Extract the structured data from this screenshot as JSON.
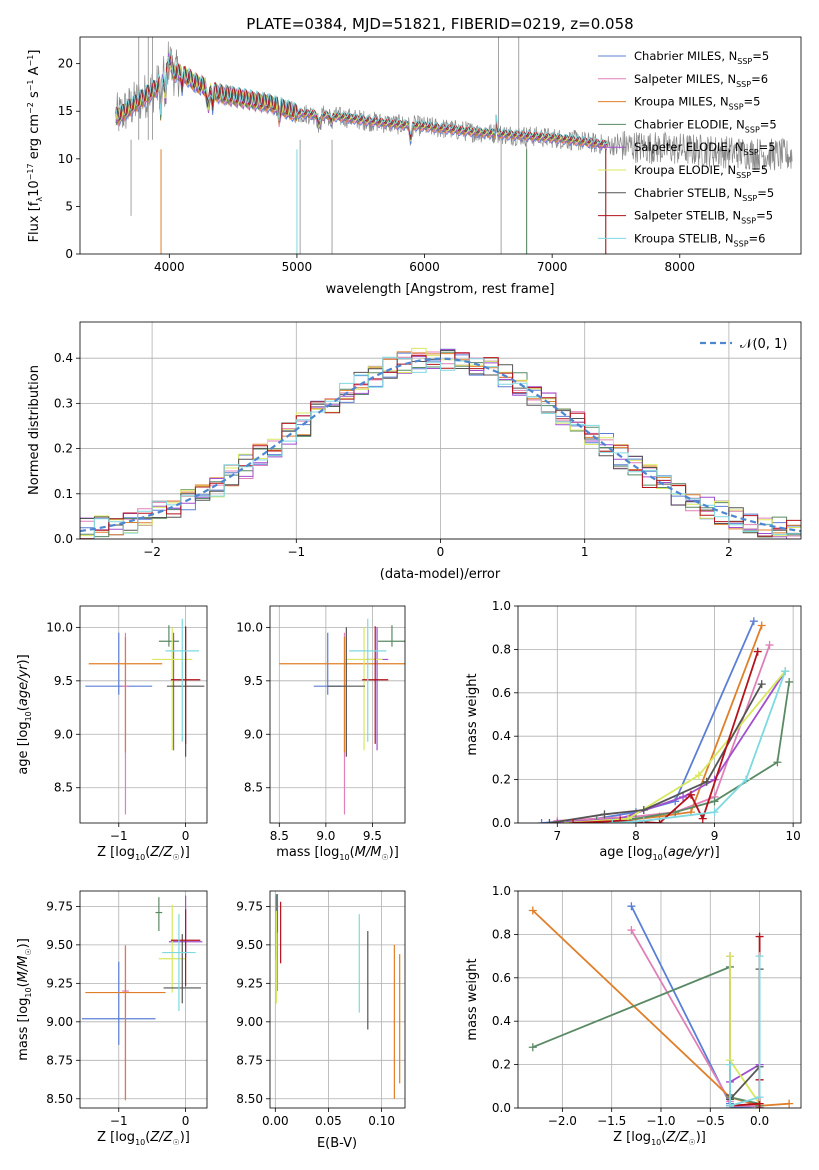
{
  "figure": {
    "title": "PLATE=0384, MJD=51821, FIBERID=0219, z=0.058"
  },
  "models": [
    {
      "name": "Chabrier MILES, N$_{SSP}$=5",
      "label_main": "Chabrier MILES, N",
      "label_sub": "SSP",
      "label_tail": "=5",
      "color": "#5b7fd6"
    },
    {
      "name": "Salpeter MILES, N$_{SSP}$=6",
      "label_main": "Salpeter MILES, N",
      "label_sub": "SSP",
      "label_tail": "=6",
      "color": "#e080b8"
    },
    {
      "name": "Kroupa MILES, N$_{SSP}$=5",
      "label_main": "Kroupa MILES, N",
      "label_sub": "SSP",
      "label_tail": "=5",
      "color": "#e07f2a"
    },
    {
      "name": "Chabrier ELODIE, N$_{SSP}$=5",
      "label_main": "Chabrier ELODIE, N",
      "label_sub": "SSP",
      "label_tail": "=5",
      "color": "#5a8a65"
    },
    {
      "name": "Salpeter ELODIE, N$_{SSP}$=5",
      "label_main": "Salpeter ELODIE, N",
      "label_sub": "SSP",
      "label_tail": "=5",
      "color": "#a14fcf"
    },
    {
      "name": "Kroupa ELODIE, N$_{SSP}$=5",
      "label_main": "Kroupa ELODIE, N",
      "label_sub": "SSP",
      "label_tail": "=5",
      "color": "#d8e860"
    },
    {
      "name": "Chabrier STELIB, N$_{SSP}$=5",
      "label_main": "Chabrier STELIB, N",
      "label_sub": "SSP",
      "label_tail": "=5",
      "color": "#555555"
    },
    {
      "name": "Salpeter STELIB, N$_{SSP}$=5",
      "label_main": "Salpeter STELIB, N",
      "label_sub": "SSP",
      "label_tail": "=5",
      "color": "#b5121b"
    },
    {
      "name": "Kroupa STELIB, N$_{SSP}$=6",
      "label_main": "Kroupa STELIB, N",
      "label_sub": "SSP",
      "label_tail": "=6",
      "color": "#7ed9e0"
    }
  ],
  "chart_data": [
    {
      "id": "spectrum",
      "type": "line",
      "xlabel": "wavelength [Angstrom, rest frame]",
      "ylabel": "Flux [f",
      "ylabel_parts": [
        "Flux [f",
        "λ",
        "10",
        "−17",
        " erg cm",
        "−2",
        " s",
        "−1",
        " A",
        "−1",
        "]"
      ],
      "xlim": [
        3300,
        8950
      ],
      "ylim": [
        0,
        22.8
      ],
      "xticks": [
        4000,
        5000,
        6000,
        7000,
        8000
      ],
      "yticks": [
        0,
        5,
        10,
        15,
        20
      ],
      "legend": "top-right",
      "continuum": {
        "x": [
          3600,
          3700,
          3800,
          3900,
          4000,
          4100,
          4200,
          4400,
          4600,
          4800,
          4900,
          5000,
          5200,
          5400,
          5600,
          5800,
          6000,
          6200,
          6400,
          6600,
          6800,
          7000,
          7200,
          7400
        ],
        "y": [
          14.5,
          15.5,
          16.5,
          17.5,
          19.0,
          19.0,
          18.0,
          16.8,
          16.3,
          15.8,
          15.3,
          14.8,
          14.6,
          14.3,
          13.9,
          13.6,
          13.4,
          13.1,
          12.8,
          12.6,
          12.4,
          12.2,
          11.9,
          11.5
        ]
      },
      "data_x_range": [
        3580,
        8880
      ]
    },
    {
      "id": "residuals",
      "type": "bar",
      "xlabel": "(data-model)/error",
      "ylabel": "Normed distribution",
      "xlim": [
        -2.5,
        2.5
      ],
      "ylim": [
        0,
        0.48
      ],
      "xticks": [
        -2,
        -1,
        0,
        1,
        2
      ],
      "yticks": [
        0.0,
        0.1,
        0.2,
        0.3,
        0.4
      ],
      "legend": "top-right",
      "legend_label": "𝒩(0, 1)",
      "gaussian": {
        "mu": 0,
        "sigma": 1
      },
      "bin_width": 0.1,
      "bin_start": -2.5,
      "bins": 50
    },
    {
      "id": "age_vs_Z",
      "type": "scatter",
      "xlabel": "Z [log",
      "xlabel_full": "Z [log10(Z/Z☉)]",
      "ylabel_full": "age  [log10(age/yr)]",
      "xlim": [
        -1.58,
        0.32
      ],
      "ylim": [
        8.17,
        10.2
      ],
      "xticks": [
        -1,
        0
      ],
      "yticks": [
        8.5,
        9.0,
        9.5,
        10.0
      ],
      "points": [
        {
          "x": -1.0,
          "xerr": 0.5,
          "y": 9.45,
          "yerr_lo": 0.08,
          "yerr_hi": 0.5
        },
        {
          "x": -0.9,
          "xerr": 0.05,
          "y": 9.45,
          "yerr_lo": 1.2,
          "yerr_hi": 0.5
        },
        {
          "x": -0.9,
          "xerr": 0.55,
          "y": 9.66,
          "yerr_lo": 0.83,
          "yerr_hi": 0.25
        },
        {
          "x": -0.25,
          "xerr": 0.15,
          "y": 9.87,
          "yerr_lo": 0.05,
          "yerr_hi": 0.15
        },
        {
          "x": -0.18,
          "xerr": 0.02,
          "y": 9.45,
          "yerr_lo": 0.6,
          "yerr_hi": 0.5
        },
        {
          "x": -0.2,
          "xerr": 0.3,
          "y": 9.7,
          "yerr_lo": 0.85,
          "yerr_hi": 0.3
        },
        {
          "x": 0.0,
          "xerr": 0.28,
          "y": 9.45,
          "yerr_lo": 0.66,
          "yerr_hi": 0.55
        },
        {
          "x": 0.0,
          "xerr": 0.22,
          "y": 9.51,
          "yerr_lo": 0.6,
          "yerr_hi": 0.5
        },
        {
          "x": -0.05,
          "xerr": 0.25,
          "y": 9.78,
          "yerr_lo": 0.85,
          "yerr_hi": 0.3
        }
      ]
    },
    {
      "id": "age_vs_mass",
      "type": "scatter",
      "xlabel_full": "mass [log10(M/M☉)]",
      "xlim": [
        8.4,
        9.85
      ],
      "ylim": [
        8.17,
        10.2
      ],
      "xticks": [
        8.5,
        9.0,
        9.5
      ],
      "yticks": [
        8.5,
        9.0,
        9.5,
        10.0
      ],
      "points": [
        {
          "x": 9.02,
          "xerr": 0.15,
          "y": 9.45,
          "yerr_lo": 0.08,
          "yerr_hi": 0.5
        },
        {
          "x": 9.2,
          "xerr": 0.02,
          "y": 9.45,
          "yerr_lo": 1.2,
          "yerr_hi": 0.5
        },
        {
          "x": 9.2,
          "xerr": 0.7,
          "y": 9.66,
          "yerr_lo": 0.83,
          "yerr_hi": 0.25
        },
        {
          "x": 9.71,
          "xerr": 0.15,
          "y": 9.87,
          "yerr_lo": 0.05,
          "yerr_hi": 0.15
        },
        {
          "x": 9.55,
          "xerr": 0.12,
          "y": 9.7,
          "yerr_lo": 0.85,
          "yerr_hi": 0.3
        },
        {
          "x": 9.41,
          "xerr": 0.2,
          "y": 9.7,
          "yerr_lo": 0.85,
          "yerr_hi": 0.3
        },
        {
          "x": 9.22,
          "xerr": 0.2,
          "y": 9.45,
          "yerr_lo": 0.66,
          "yerr_hi": 0.55
        },
        {
          "x": 9.53,
          "xerr": 0.14,
          "y": 9.51,
          "yerr_lo": 0.6,
          "yerr_hi": 0.5
        },
        {
          "x": 9.45,
          "xerr": 0.2,
          "y": 9.78,
          "yerr_lo": 0.85,
          "yerr_hi": 0.3
        }
      ]
    },
    {
      "id": "weight_vs_age",
      "type": "line",
      "xlabel_full": "age  [log10(age/yr)]",
      "ylabel": "mass weight",
      "xlim": [
        6.5,
        10.1
      ],
      "ylim": [
        0,
        1.0
      ],
      "xticks": [
        7,
        8,
        9,
        10
      ],
      "yticks": [
        0.0,
        0.2,
        0.4,
        0.6,
        0.8,
        1.0
      ],
      "series": [
        {
          "x": [
            6.8,
            7.5,
            8.0,
            8.5,
            9.5
          ],
          "y": [
            0.0,
            0.02,
            0.05,
            0.1,
            0.93
          ]
        },
        {
          "x": [
            7.0,
            7.5,
            8.0,
            8.5,
            9.0,
            9.7
          ],
          "y": [
            0.01,
            0.02,
            0.03,
            0.05,
            0.12,
            0.82
          ]
        },
        {
          "x": [
            7.2,
            7.8,
            8.3,
            8.7,
            9.6
          ],
          "y": [
            0.0,
            0.01,
            0.03,
            0.05,
            0.91
          ]
        },
        {
          "x": [
            7.5,
            8.0,
            8.5,
            9.0,
            9.8,
            9.95
          ],
          "y": [
            0.01,
            0.02,
            0.05,
            0.1,
            0.28,
            0.65
          ]
        },
        {
          "x": [
            7.0,
            7.8,
            8.6,
            9.0,
            9.9
          ],
          "y": [
            0.0,
            0.02,
            0.12,
            0.2,
            0.7
          ]
        },
        {
          "x": [
            7.1,
            7.9,
            8.8,
            9.9
          ],
          "y": [
            0.0,
            0.02,
            0.22,
            0.7
          ]
        },
        {
          "x": [
            6.9,
            7.6,
            8.1,
            8.9,
            9.6
          ],
          "y": [
            0.0,
            0.04,
            0.06,
            0.19,
            0.64
          ]
        },
        {
          "x": [
            7.2,
            7.8,
            8.3,
            8.7,
            8.85,
            9.55
          ],
          "y": [
            0.0,
            0.01,
            0.0,
            0.13,
            0.02,
            0.79
          ]
        },
        {
          "x": [
            7.7,
            8.1,
            9.0,
            9.4,
            9.9
          ],
          "y": [
            0.0,
            0.01,
            0.05,
            0.2,
            0.7
          ]
        }
      ]
    },
    {
      "id": "mass_vs_Z",
      "type": "scatter",
      "xlabel_full": "Z [log10(Z/Z☉)]",
      "ylabel_full": "mass [log10(M/M☉)]",
      "xlim": [
        -1.58,
        0.32
      ],
      "ylim": [
        8.44,
        9.85
      ],
      "xticks": [
        -1,
        0
      ],
      "yticks": [
        8.5,
        8.75,
        9.0,
        9.25,
        9.5,
        9.75
      ],
      "points": [
        {
          "x": -1.0,
          "xerr": 0.55,
          "y": 9.02,
          "yerr_lo": 0.17,
          "yerr_hi": 0.37
        },
        {
          "x": -0.9,
          "xerr": 0.05,
          "y": 9.2,
          "yerr_lo": 0.7,
          "yerr_hi": 0.3
        },
        {
          "x": -0.9,
          "xerr": 0.6,
          "y": 9.19,
          "yerr_lo": 0.7,
          "yerr_hi": 0.3
        },
        {
          "x": -0.4,
          "xerr": 0.05,
          "y": 9.71,
          "yerr_lo": 0.12,
          "yerr_hi": 0.1
        },
        {
          "x": 0.0,
          "xerr": 0.25,
          "y": 9.52,
          "yerr_lo": 0.1,
          "yerr_hi": 0.3
        },
        {
          "x": -0.2,
          "xerr": 0.2,
          "y": 9.41,
          "yerr_lo": 0.22,
          "yerr_hi": 0.35
        },
        {
          "x": -0.05,
          "xerr": 0.28,
          "y": 9.22,
          "yerr_lo": 0.1,
          "yerr_hi": 0.35
        },
        {
          "x": 0.0,
          "xerr": 0.22,
          "y": 9.53,
          "yerr_lo": 0.3,
          "yerr_hi": 0.2
        },
        {
          "x": -0.1,
          "xerr": 0.25,
          "y": 9.45,
          "yerr_lo": 0.38,
          "yerr_hi": 0.25
        }
      ]
    },
    {
      "id": "mass_vs_ebv",
      "type": "scatter",
      "xlabel": "E(B-V)",
      "xlim": [
        -0.005,
        0.122
      ],
      "ylim": [
        8.44,
        9.85
      ],
      "xticks": [
        0.0,
        0.05,
        0.1
      ],
      "yticks": [
        8.5,
        8.75,
        9.0,
        9.25,
        9.5,
        9.75
      ],
      "points": [
        {
          "x": 0.001,
          "y": 9.6,
          "yerr_lo": 0.2,
          "yerr_hi": 0.22
        },
        {
          "x": 0.002,
          "y": 9.5,
          "yerr_lo": 0.3,
          "yerr_hi": 0.28
        },
        {
          "x": 0.112,
          "y": 9.0,
          "yerr_lo": 0.5,
          "yerr_hi": 0.5
        },
        {
          "x": 0.001,
          "y": 9.63,
          "yerr_lo": 0.2,
          "yerr_hi": 0.2
        },
        {
          "x": 0.002,
          "y": 9.68,
          "yerr_lo": 0.1,
          "yerr_hi": 0.15
        },
        {
          "x": 0.001,
          "y": 9.42,
          "yerr_lo": 0.3,
          "yerr_hi": 0.3
        },
        {
          "x": 0.087,
          "y": 9.27,
          "yerr_lo": 0.32,
          "yerr_hi": 0.32
        },
        {
          "x": 0.005,
          "y": 9.58,
          "yerr_lo": 0.2,
          "yerr_hi": 0.2
        },
        {
          "x": 0.079,
          "y": 9.38,
          "yerr_lo": 0.32,
          "yerr_hi": 0.32
        }
      ],
      "extra_err": {
        "x": 0.117,
        "y": 9.02,
        "yerr_lo": 0.42,
        "yerr_hi": 0.42,
        "color": "#e07f2a"
      }
    },
    {
      "id": "weight_vs_Z",
      "type": "line",
      "xlabel_full": "Z [log10(Z/Z☉)]",
      "ylabel": "mass weight",
      "xlim": [
        -2.45,
        0.42
      ],
      "ylim": [
        0,
        1.0
      ],
      "xticks": [
        -2.0,
        -1.5,
        -1.0,
        -0.5,
        0.0
      ],
      "yticks": [
        0.0,
        0.2,
        0.4,
        0.6,
        0.8,
        1.0
      ],
      "series": [
        {
          "x": [
            -1.3,
            -0.3,
            -0.3,
            0.0,
            0.0
          ],
          "y": [
            0.93,
            0.02,
            0.0,
            0.01,
            0.0
          ]
        },
        {
          "x": [
            -1.3,
            -0.3,
            -0.3,
            0.0,
            0.0
          ],
          "y": [
            0.82,
            0.03,
            0.01,
            0.01,
            0.0
          ]
        },
        {
          "x": [
            -2.3,
            -0.3,
            0.0,
            0.3
          ],
          "y": [
            0.91,
            0.05,
            0.01,
            0.02
          ]
        },
        {
          "x": [
            -2.3,
            -0.3,
            -0.3,
            0.0,
            0.0
          ],
          "y": [
            0.28,
            0.65,
            0.05,
            0.02,
            0.01
          ]
        },
        {
          "x": [
            -0.3,
            -0.3,
            0.0,
            0.0
          ],
          "y": [
            0.7,
            0.12,
            0.2,
            0.0
          ]
        },
        {
          "x": [
            -0.3,
            -0.3,
            0.0,
            0.0
          ],
          "y": [
            0.7,
            0.22,
            0.02,
            0.0
          ]
        },
        {
          "x": [
            -0.3,
            -0.3,
            0.0,
            0.0,
            0.0
          ],
          "y": [
            0.06,
            0.04,
            0.19,
            0.64,
            0.0
          ]
        },
        {
          "x": [
            -0.3,
            0.0,
            0.0,
            0.0,
            0.0
          ],
          "y": [
            0.01,
            0.02,
            0.13,
            0.79,
            0.0
          ]
        },
        {
          "x": [
            -0.3,
            -0.3,
            0.0,
            0.0
          ],
          "y": [
            0.2,
            0.01,
            0.05,
            0.7
          ]
        }
      ]
    }
  ]
}
